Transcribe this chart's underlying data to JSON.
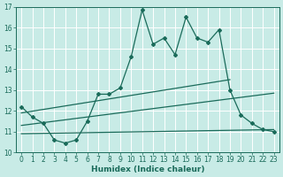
{
  "title": "",
  "xlabel": "Humidex (Indice chaleur)",
  "ylabel": "",
  "xlim": [
    -0.5,
    23.5
  ],
  "ylim": [
    10,
    17
  ],
  "yticks": [
    10,
    11,
    12,
    13,
    14,
    15,
    16,
    17
  ],
  "xticks": [
    0,
    1,
    2,
    3,
    4,
    5,
    6,
    7,
    8,
    9,
    10,
    11,
    12,
    13,
    14,
    15,
    16,
    17,
    18,
    19,
    20,
    21,
    22,
    23
  ],
  "bg_color": "#c8ebe6",
  "line_color": "#1a6b5a",
  "grid_color": "#ffffff",
  "line1_x": [
    0,
    1,
    2,
    3,
    4,
    5,
    6,
    7,
    8,
    9,
    10,
    11,
    12,
    13,
    14,
    15,
    16,
    17,
    18,
    19,
    20,
    21,
    22,
    23
  ],
  "line1_y": [
    12.2,
    11.7,
    11.4,
    10.6,
    10.45,
    10.6,
    11.5,
    12.8,
    12.8,
    13.1,
    14.6,
    16.85,
    15.2,
    15.5,
    14.7,
    16.5,
    15.5,
    15.3,
    15.9,
    13.0,
    11.8,
    11.4,
    11.1,
    11.0
  ],
  "line2_x": [
    0,
    19
  ],
  "line2_y": [
    11.9,
    13.5
  ],
  "line3_x": [
    0,
    23
  ],
  "line3_y": [
    11.3,
    12.85
  ],
  "line4_x": [
    0,
    23
  ],
  "line4_y": [
    10.9,
    11.1
  ]
}
